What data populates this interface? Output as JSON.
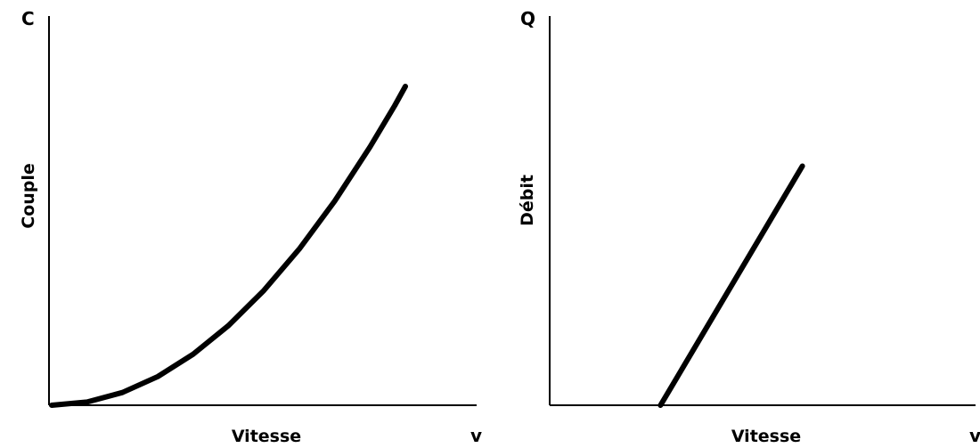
{
  "chart_data": [
    {
      "type": "line",
      "y_symbol": "C",
      "x_symbol": "v",
      "ylabel": "Couple",
      "xlabel": "Vitesse",
      "grid": false,
      "legend": "none",
      "xlim": [
        0,
        1
      ],
      "ylim": [
        0,
        1
      ],
      "series": [
        {
          "x": [
            0.0,
            0.1,
            0.2,
            0.3,
            0.4,
            0.5,
            0.6,
            0.7,
            0.8,
            0.9,
            0.97,
            1.0
          ],
          "y": [
            0.0,
            0.01,
            0.04,
            0.09,
            0.16,
            0.25,
            0.36,
            0.49,
            0.64,
            0.81,
            0.94,
            1.0
          ]
        }
      ]
    },
    {
      "type": "line",
      "y_symbol": "Q",
      "x_symbol": "v",
      "ylabel": "Débit",
      "xlabel": "Vitesse",
      "grid": false,
      "legend": "none",
      "xlim": [
        0,
        1
      ],
      "ylim": [
        0,
        1
      ],
      "series": [
        {
          "x": [
            0.0,
            0.3,
            0.7
          ],
          "y": [
            0.0,
            0.0,
            0.75
          ]
        }
      ]
    }
  ]
}
